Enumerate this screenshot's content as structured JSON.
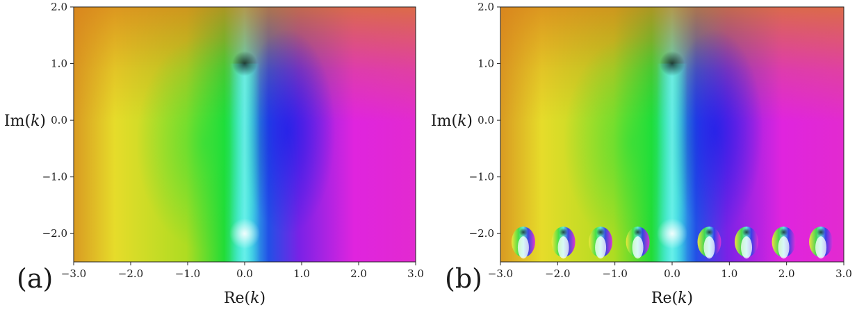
{
  "chart_data": [
    {
      "type": "heatmap",
      "panel_label": "(a)",
      "xlabel": "Re(k)",
      "ylabel": "Im(k)",
      "xlim": [
        -3.0,
        3.0
      ],
      "ylim": [
        -2.5,
        2.0
      ],
      "x_ticks": [
        -3.0,
        -2.0,
        -1.0,
        0.0,
        1.0,
        2.0,
        3.0
      ],
      "x_tick_labels": [
        "−3.0",
        "−2.0",
        "−1.0",
        "0.0",
        "1.0",
        "2.0",
        "3.0"
      ],
      "y_ticks": [
        2.0,
        1.0,
        0.0,
        -1.0,
        -2.0
      ],
      "y_tick_labels": [
        "2.0",
        "1.0",
        "0.0",
        "−1.0",
        "−2.0"
      ],
      "zeros": [
        {
          "re": 0.0,
          "im": 1.0
        }
      ],
      "poles": [
        {
          "re": 0.0,
          "im": -2.0
        }
      ],
      "colors": {
        "ambient": "#d9a020",
        "left": "#e6e62a",
        "center": "#1fe061",
        "cyan": "#3ce6e0",
        "right": "#e629e0",
        "top": "#c41820"
      }
    },
    {
      "type": "heatmap",
      "panel_label": "(b)",
      "xlabel": "Re(k)",
      "ylabel": "Im(k)",
      "xlim": [
        -3.0,
        3.0
      ],
      "ylim": [
        -2.5,
        2.0
      ],
      "x_ticks": [
        -3.0,
        -2.0,
        -1.0,
        0.0,
        1.0,
        2.0,
        3.0
      ],
      "x_tick_labels": [
        "−3.0",
        "−2.0",
        "−1.0",
        "0.0",
        "1.0",
        "2.0",
        "3.0"
      ],
      "y_ticks": [
        2.0,
        1.0,
        0.0,
        -1.0,
        -2.0
      ],
      "y_tick_labels": [
        "2.0",
        "1.0",
        "0.0",
        "−1.0",
        "−2.0"
      ],
      "zeros": [
        {
          "re": 0.0,
          "im": 1.0
        }
      ],
      "poles": [
        {
          "re": 0.0,
          "im": -2.0
        }
      ],
      "pole_zero_pairs": [
        {
          "re": -2.6,
          "im": -2.0
        },
        {
          "re": -1.9,
          "im": -2.0
        },
        {
          "re": -1.25,
          "im": -2.0
        },
        {
          "re": -0.6,
          "im": -2.0
        },
        {
          "re": 0.65,
          "im": -2.0
        },
        {
          "re": 1.3,
          "im": -2.0
        },
        {
          "re": 1.95,
          "im": -2.0
        },
        {
          "re": 2.6,
          "im": -2.0
        }
      ],
      "colors": {
        "ambient": "#d9a020",
        "left": "#e6e62a",
        "center": "#1fe061",
        "cyan": "#3ce6e0",
        "right": "#e629e0",
        "top": "#c41820"
      }
    }
  ]
}
